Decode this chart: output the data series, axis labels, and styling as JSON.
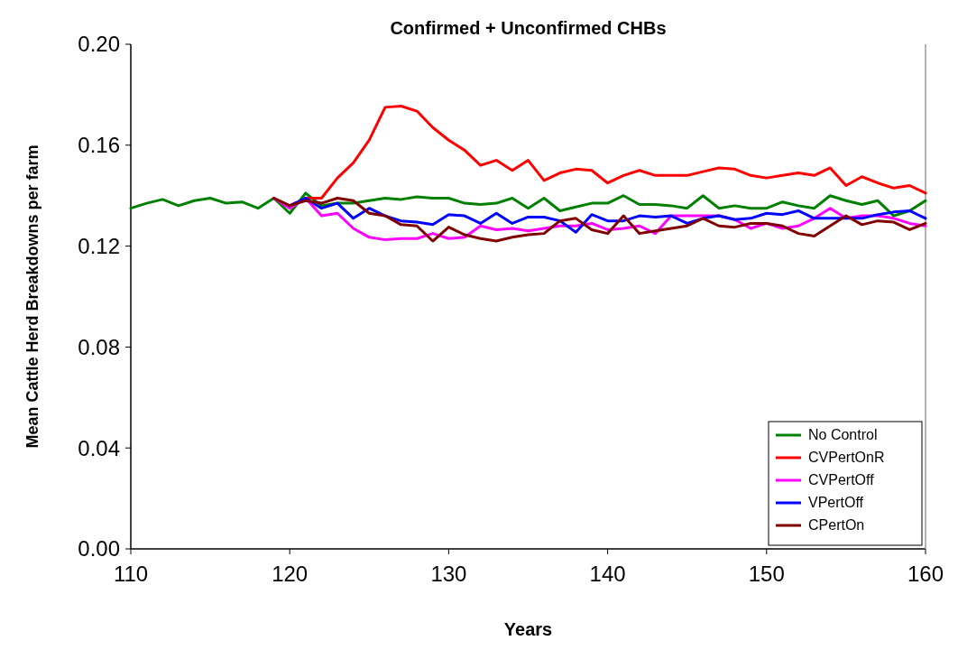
{
  "chart_data": {
    "type": "line",
    "title": "Confirmed + Unconfirmed CHBs",
    "xlabel": "Years",
    "ylabel": "Mean Cattle Herd Breakdowns per farm",
    "xlim": [
      110,
      160
    ],
    "xticks": [
      110,
      120,
      130,
      140,
      150,
      160
    ],
    "ylim": [
      0,
      0.2
    ],
    "yticks": [
      {
        "value": 0,
        "label": "0.00"
      },
      {
        "value": 0.04,
        "label": "0.04"
      },
      {
        "value": 0.08,
        "label": "0.08"
      },
      {
        "value": 0.12,
        "label": "0.12"
      },
      {
        "value": 0.16,
        "label": "0.16"
      },
      {
        "value": 0.2,
        "label": "0.20"
      }
    ],
    "legend": "bottom right",
    "grid": false,
    "marker": "none",
    "line_style": "solid",
    "series": [
      {
        "name": "No Control",
        "color": "#008000",
        "x": [
          110,
          111,
          112,
          113,
          114,
          115,
          116,
          117,
          118,
          119,
          120,
          121,
          122,
          123,
          124,
          125,
          126,
          127,
          128,
          129,
          130,
          131,
          132,
          133,
          134,
          135,
          136,
          137,
          138,
          139,
          140,
          141,
          142,
          143,
          144,
          145,
          146,
          147,
          148,
          149,
          150,
          151,
          152,
          153,
          154,
          155,
          156,
          157,
          158,
          159,
          160
        ],
        "values": [
          0.135,
          0.137,
          0.1385,
          0.136,
          0.138,
          0.139,
          0.137,
          0.1375,
          0.135,
          0.139,
          0.133,
          0.141,
          0.136,
          0.137,
          0.137,
          0.138,
          0.139,
          0.1385,
          0.1395,
          0.139,
          0.139,
          0.137,
          0.1365,
          0.137,
          0.139,
          0.135,
          0.139,
          0.134,
          0.1355,
          0.137,
          0.137,
          0.14,
          0.1365,
          0.1365,
          0.136,
          0.135,
          0.14,
          0.135,
          0.136,
          0.135,
          0.135,
          0.1375,
          0.136,
          0.135,
          0.14,
          0.138,
          0.1365,
          0.138,
          0.132,
          0.134,
          0.138
        ]
      },
      {
        "name": "CVPertOnR",
        "color": "#ff0000",
        "x": [
          119,
          120,
          121,
          122,
          123,
          124,
          125,
          126,
          127,
          128,
          129,
          130,
          131,
          132,
          133,
          134,
          135,
          136,
          137,
          138,
          139,
          140,
          141,
          142,
          143,
          144,
          145,
          146,
          147,
          148,
          149,
          150,
          151,
          152,
          153,
          154,
          155,
          156,
          157,
          158,
          159,
          160
        ],
        "values": [
          0.139,
          0.136,
          0.139,
          0.139,
          0.147,
          0.153,
          0.162,
          0.175,
          0.1755,
          0.1735,
          0.167,
          0.162,
          0.158,
          0.152,
          0.154,
          0.15,
          0.154,
          0.146,
          0.149,
          0.1505,
          0.15,
          0.145,
          0.148,
          0.15,
          0.148,
          0.148,
          0.148,
          0.1495,
          0.151,
          0.1505,
          0.148,
          0.147,
          0.148,
          0.149,
          0.148,
          0.151,
          0.144,
          0.1475,
          0.145,
          0.143,
          0.144,
          0.141
        ]
      },
      {
        "name": "CVPertOff",
        "color": "#ff00ff",
        "x": [
          119,
          120,
          121,
          122,
          123,
          124,
          125,
          126,
          127,
          128,
          129,
          130,
          131,
          132,
          133,
          134,
          135,
          136,
          137,
          138,
          139,
          140,
          141,
          142,
          143,
          144,
          145,
          146,
          147,
          148,
          149,
          150,
          151,
          152,
          153,
          154,
          155,
          156,
          157,
          158,
          159,
          160
        ],
        "values": [
          0.139,
          0.135,
          0.139,
          0.132,
          0.133,
          0.127,
          0.1235,
          0.1225,
          0.123,
          0.123,
          0.125,
          0.123,
          0.1235,
          0.128,
          0.1265,
          0.127,
          0.126,
          0.127,
          0.128,
          0.128,
          0.129,
          0.1265,
          0.127,
          0.128,
          0.125,
          0.132,
          0.132,
          0.132,
          0.132,
          0.1305,
          0.127,
          0.129,
          0.127,
          0.128,
          0.131,
          0.135,
          0.131,
          0.132,
          0.132,
          0.131,
          0.129,
          0.128
        ]
      },
      {
        "name": "VPertOff",
        "color": "#0000ff",
        "x": [
          120,
          121,
          122,
          123,
          124,
          125,
          126,
          127,
          128,
          129,
          130,
          131,
          132,
          133,
          134,
          135,
          136,
          137,
          138,
          139,
          140,
          141,
          142,
          143,
          144,
          145,
          146,
          147,
          148,
          149,
          150,
          151,
          152,
          153,
          154,
          155,
          156,
          157,
          158,
          159,
          160
        ],
        "values": [
          0.136,
          0.139,
          0.135,
          0.137,
          0.131,
          0.135,
          0.132,
          0.13,
          0.1295,
          0.1285,
          0.1325,
          0.132,
          0.129,
          0.133,
          0.129,
          0.1315,
          0.1315,
          0.13,
          0.1255,
          0.1325,
          0.13,
          0.13,
          0.132,
          0.1315,
          0.132,
          0.129,
          0.131,
          0.132,
          0.1305,
          0.131,
          0.133,
          0.1325,
          0.134,
          0.131,
          0.131,
          0.131,
          0.131,
          0.1325,
          0.1335,
          0.134,
          0.131
        ]
      },
      {
        "name": "CPertOn",
        "color": "#800000",
        "x": [
          119,
          120,
          121,
          122,
          123,
          124,
          125,
          126,
          127,
          128,
          129,
          130,
          131,
          132,
          133,
          134,
          135,
          136,
          137,
          138,
          139,
          140,
          141,
          142,
          143,
          144,
          145,
          146,
          147,
          148,
          149,
          150,
          151,
          152,
          153,
          154,
          155,
          156,
          157,
          158,
          159,
          160
        ],
        "values": [
          0.139,
          0.136,
          0.138,
          0.137,
          0.139,
          0.138,
          0.133,
          0.132,
          0.1285,
          0.128,
          0.122,
          0.1275,
          0.1245,
          0.123,
          0.122,
          0.1235,
          0.1245,
          0.125,
          0.13,
          0.131,
          0.1265,
          0.125,
          0.132,
          0.125,
          0.126,
          0.127,
          0.128,
          0.131,
          0.128,
          0.1275,
          0.129,
          0.129,
          0.128,
          0.125,
          0.124,
          0.128,
          0.132,
          0.1285,
          0.13,
          0.1295,
          0.1265,
          0.129
        ]
      }
    ]
  }
}
